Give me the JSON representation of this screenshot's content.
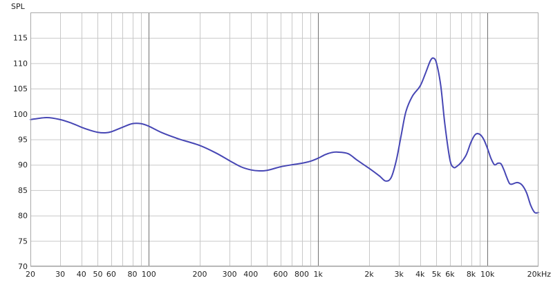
{
  "chart_data": {
    "type": "line",
    "title": "",
    "xlabel": "",
    "ylabel": "SPL",
    "x_scale": "log",
    "xlim": [
      20,
      20000
    ],
    "ylim": [
      70,
      120
    ],
    "grid": true,
    "y_ticks": [
      {
        "value": 70,
        "label": "70"
      },
      {
        "value": 75,
        "label": "75"
      },
      {
        "value": 80,
        "label": "80"
      },
      {
        "value": 85,
        "label": "85"
      },
      {
        "value": 90,
        "label": "90"
      },
      {
        "value": 95,
        "label": "95"
      },
      {
        "value": 100,
        "label": "100"
      },
      {
        "value": 105,
        "label": "105"
      },
      {
        "value": 110,
        "label": "110"
      },
      {
        "value": 115,
        "label": "115"
      }
    ],
    "x_ticks": [
      {
        "value": 20,
        "label": "20"
      },
      {
        "value": 30,
        "label": "30"
      },
      {
        "value": 40,
        "label": "40"
      },
      {
        "value": 50,
        "label": "50"
      },
      {
        "value": 60,
        "label": "60"
      },
      {
        "value": 80,
        "label": "80"
      },
      {
        "value": 100,
        "label": "100"
      },
      {
        "value": 200,
        "label": "200"
      },
      {
        "value": 300,
        "label": "300"
      },
      {
        "value": 400,
        "label": "400"
      },
      {
        "value": 600,
        "label": "600"
      },
      {
        "value": 800,
        "label": "800"
      },
      {
        "value": 1000,
        "label": "1k"
      },
      {
        "value": 2000,
        "label": "2k"
      },
      {
        "value": 3000,
        "label": "3k"
      },
      {
        "value": 4000,
        "label": "4k"
      },
      {
        "value": 5000,
        "label": "5k"
      },
      {
        "value": 6000,
        "label": "6k"
      },
      {
        "value": 8000,
        "label": "8k"
      },
      {
        "value": 10000,
        "label": "10k"
      },
      {
        "value": 20000,
        "label": "20kHz"
      }
    ],
    "minor_x_gridlines": [
      20,
      30,
      40,
      50,
      60,
      70,
      80,
      90,
      200,
      300,
      400,
      500,
      600,
      700,
      800,
      900,
      2000,
      3000,
      4000,
      5000,
      6000,
      7000,
      8000,
      9000
    ],
    "major_x_gridlines": [
      100,
      1000,
      10000
    ],
    "colors": {
      "line": "#4646b4",
      "grid_minor": "#c8c8c8",
      "grid_major": "#707070",
      "frame": "#a8a8a8",
      "background": "#ffffff"
    },
    "series": [
      {
        "x": [
          20,
          25,
          30,
          35,
          40,
          45,
          50,
          55,
          60,
          70,
          80,
          90,
          100,
          120,
          150,
          200,
          250,
          300,
          350,
          400,
          450,
          500,
          600,
          700,
          800,
          900,
          1000,
          1100,
          1200,
          1300,
          1500,
          1700,
          2000,
          2300,
          2500,
          2700,
          2900,
          3100,
          3300,
          3600,
          4000,
          4300,
          4600,
          4800,
          5000,
          5300,
          5600,
          6000,
          6300,
          6600,
          7000,
          7500,
          8000,
          8500,
          9000,
          9500,
          10000,
          10500,
          11000,
          11500,
          12000,
          12500,
          13000,
          13500,
          14000,
          15000,
          16000,
          17000,
          18000,
          19000,
          20000
        ],
        "y": [
          98.9,
          99.3,
          98.9,
          98.2,
          97.4,
          96.8,
          96.4,
          96.3,
          96.5,
          97.4,
          98.1,
          98.1,
          97.6,
          96.3,
          95.1,
          93.8,
          92.3,
          90.8,
          89.6,
          89.0,
          88.8,
          88.9,
          89.6,
          90.0,
          90.3,
          90.7,
          91.3,
          92.0,
          92.4,
          92.5,
          92.2,
          90.9,
          89.3,
          87.8,
          86.8,
          87.5,
          91.0,
          96.0,
          100.5,
          103.5,
          105.5,
          108.0,
          110.5,
          111.0,
          110.0,
          105.5,
          98.0,
          91.0,
          89.5,
          89.7,
          90.5,
          92.0,
          94.5,
          96.0,
          96.0,
          95.0,
          93.2,
          91.2,
          90.0,
          90.3,
          90.2,
          89.0,
          87.5,
          86.3,
          86.2,
          86.5,
          86.0,
          84.5,
          82.0,
          80.6,
          80.6
        ]
      }
    ]
  }
}
